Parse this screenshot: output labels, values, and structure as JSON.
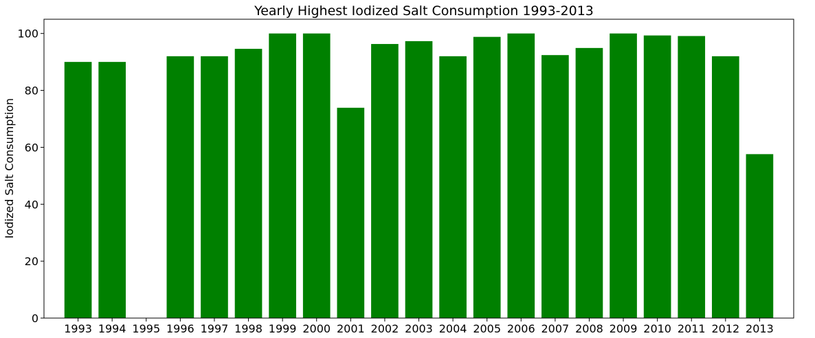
{
  "chart_data": {
    "type": "bar",
    "title": "Yearly Highest Iodized Salt Consumption 1993-2013",
    "xlabel": "",
    "ylabel": "Iodized Salt Consumption",
    "categories": [
      "1993",
      "1994",
      "1995",
      "1996",
      "1997",
      "1998",
      "1999",
      "2000",
      "2001",
      "2002",
      "2003",
      "2004",
      "2005",
      "2006",
      "2007",
      "2008",
      "2009",
      "2010",
      "2011",
      "2012",
      "2013"
    ],
    "values": [
      90,
      90,
      null,
      92,
      92,
      94.6,
      100,
      100,
      73.9,
      96.3,
      97.3,
      92,
      98.8,
      100,
      92.4,
      94.9,
      100,
      99.3,
      99.1,
      92,
      57.6
    ],
    "ylim": [
      0,
      105
    ],
    "yticks": [
      0,
      20,
      40,
      60,
      80,
      100
    ],
    "grid": false,
    "bar_color": "#008000"
  }
}
